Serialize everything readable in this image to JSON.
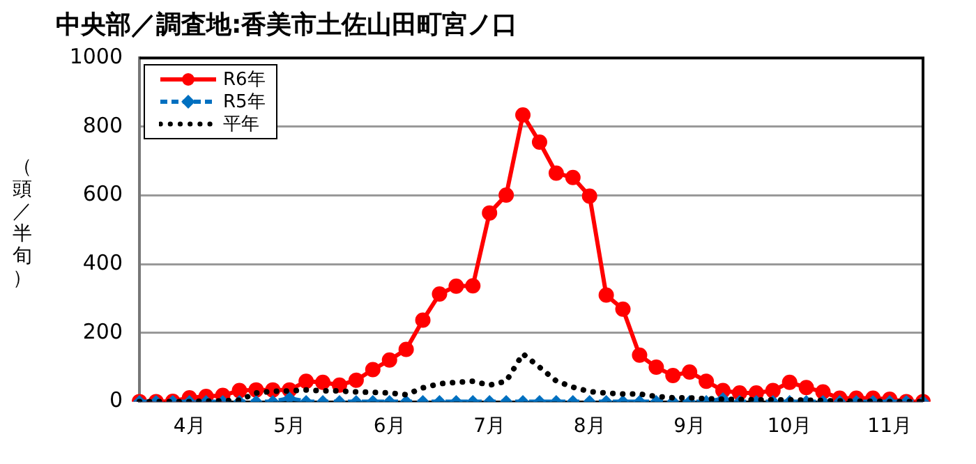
{
  "chart_data": {
    "type": "line",
    "title": "中央部／調査地:香美市土佐山田町宮ノ口",
    "ylabel": "（頭／半旬）",
    "categories": [
      null,
      null,
      null,
      "4月",
      null,
      null,
      null,
      null,
      null,
      "5月",
      null,
      null,
      null,
      null,
      null,
      "6月",
      null,
      null,
      null,
      null,
      null,
      "7月",
      null,
      null,
      null,
      null,
      null,
      "8月",
      null,
      null,
      null,
      null,
      null,
      "9月",
      null,
      null,
      null,
      null,
      null,
      "10月",
      null,
      null,
      null,
      null,
      null,
      "11月",
      null,
      null
    ],
    "ylim": [
      0,
      1000
    ],
    "yticks": [
      0,
      200,
      400,
      600,
      800,
      1000
    ],
    "grid": "y",
    "legend": "top left",
    "series": [
      {
        "name": "R6年",
        "color": "#ff0000",
        "marker": "circle",
        "line_style": "solid",
        "values": [
          0,
          0,
          1,
          11,
          15,
          18,
          32,
          34,
          34,
          34,
          59,
          56,
          48,
          62,
          93,
          121,
          152,
          237,
          313,
          336,
          337,
          549,
          601,
          834,
          755,
          665,
          652,
          598,
          310,
          269,
          135,
          100,
          76,
          86,
          59,
          32,
          25,
          25,
          32,
          56,
          41,
          28,
          10,
          10,
          10,
          7,
          0,
          0
        ]
      },
      {
        "name": "R5年",
        "color": "#0070c0",
        "marker": "diamond",
        "line_style": "dashed",
        "values": [
          0,
          0,
          0,
          0,
          0,
          0,
          0,
          0,
          0,
          10,
          0,
          0,
          0,
          0,
          0,
          0,
          0,
          0,
          0,
          0,
          0,
          0,
          0,
          0,
          0,
          0,
          0,
          0,
          0,
          0,
          0,
          0,
          0,
          0,
          0,
          8,
          0,
          0,
          0,
          0,
          0,
          0,
          0,
          0,
          0,
          0,
          0,
          0
        ]
      },
      {
        "name": "平年",
        "color": "#000000",
        "marker": "none",
        "line_style": "dotted",
        "values": [
          0,
          0,
          0,
          0,
          1,
          2,
          4,
          25,
          30,
          31,
          34,
          31,
          31,
          28,
          27,
          25,
          20,
          40,
          52,
          56,
          59,
          48,
          59,
          139,
          100,
          60,
          42,
          29,
          25,
          22,
          22,
          15,
          11,
          11,
          8,
          7,
          6,
          5,
          5,
          5,
          4,
          3,
          2,
          1,
          1,
          0,
          0,
          0
        ]
      }
    ]
  }
}
